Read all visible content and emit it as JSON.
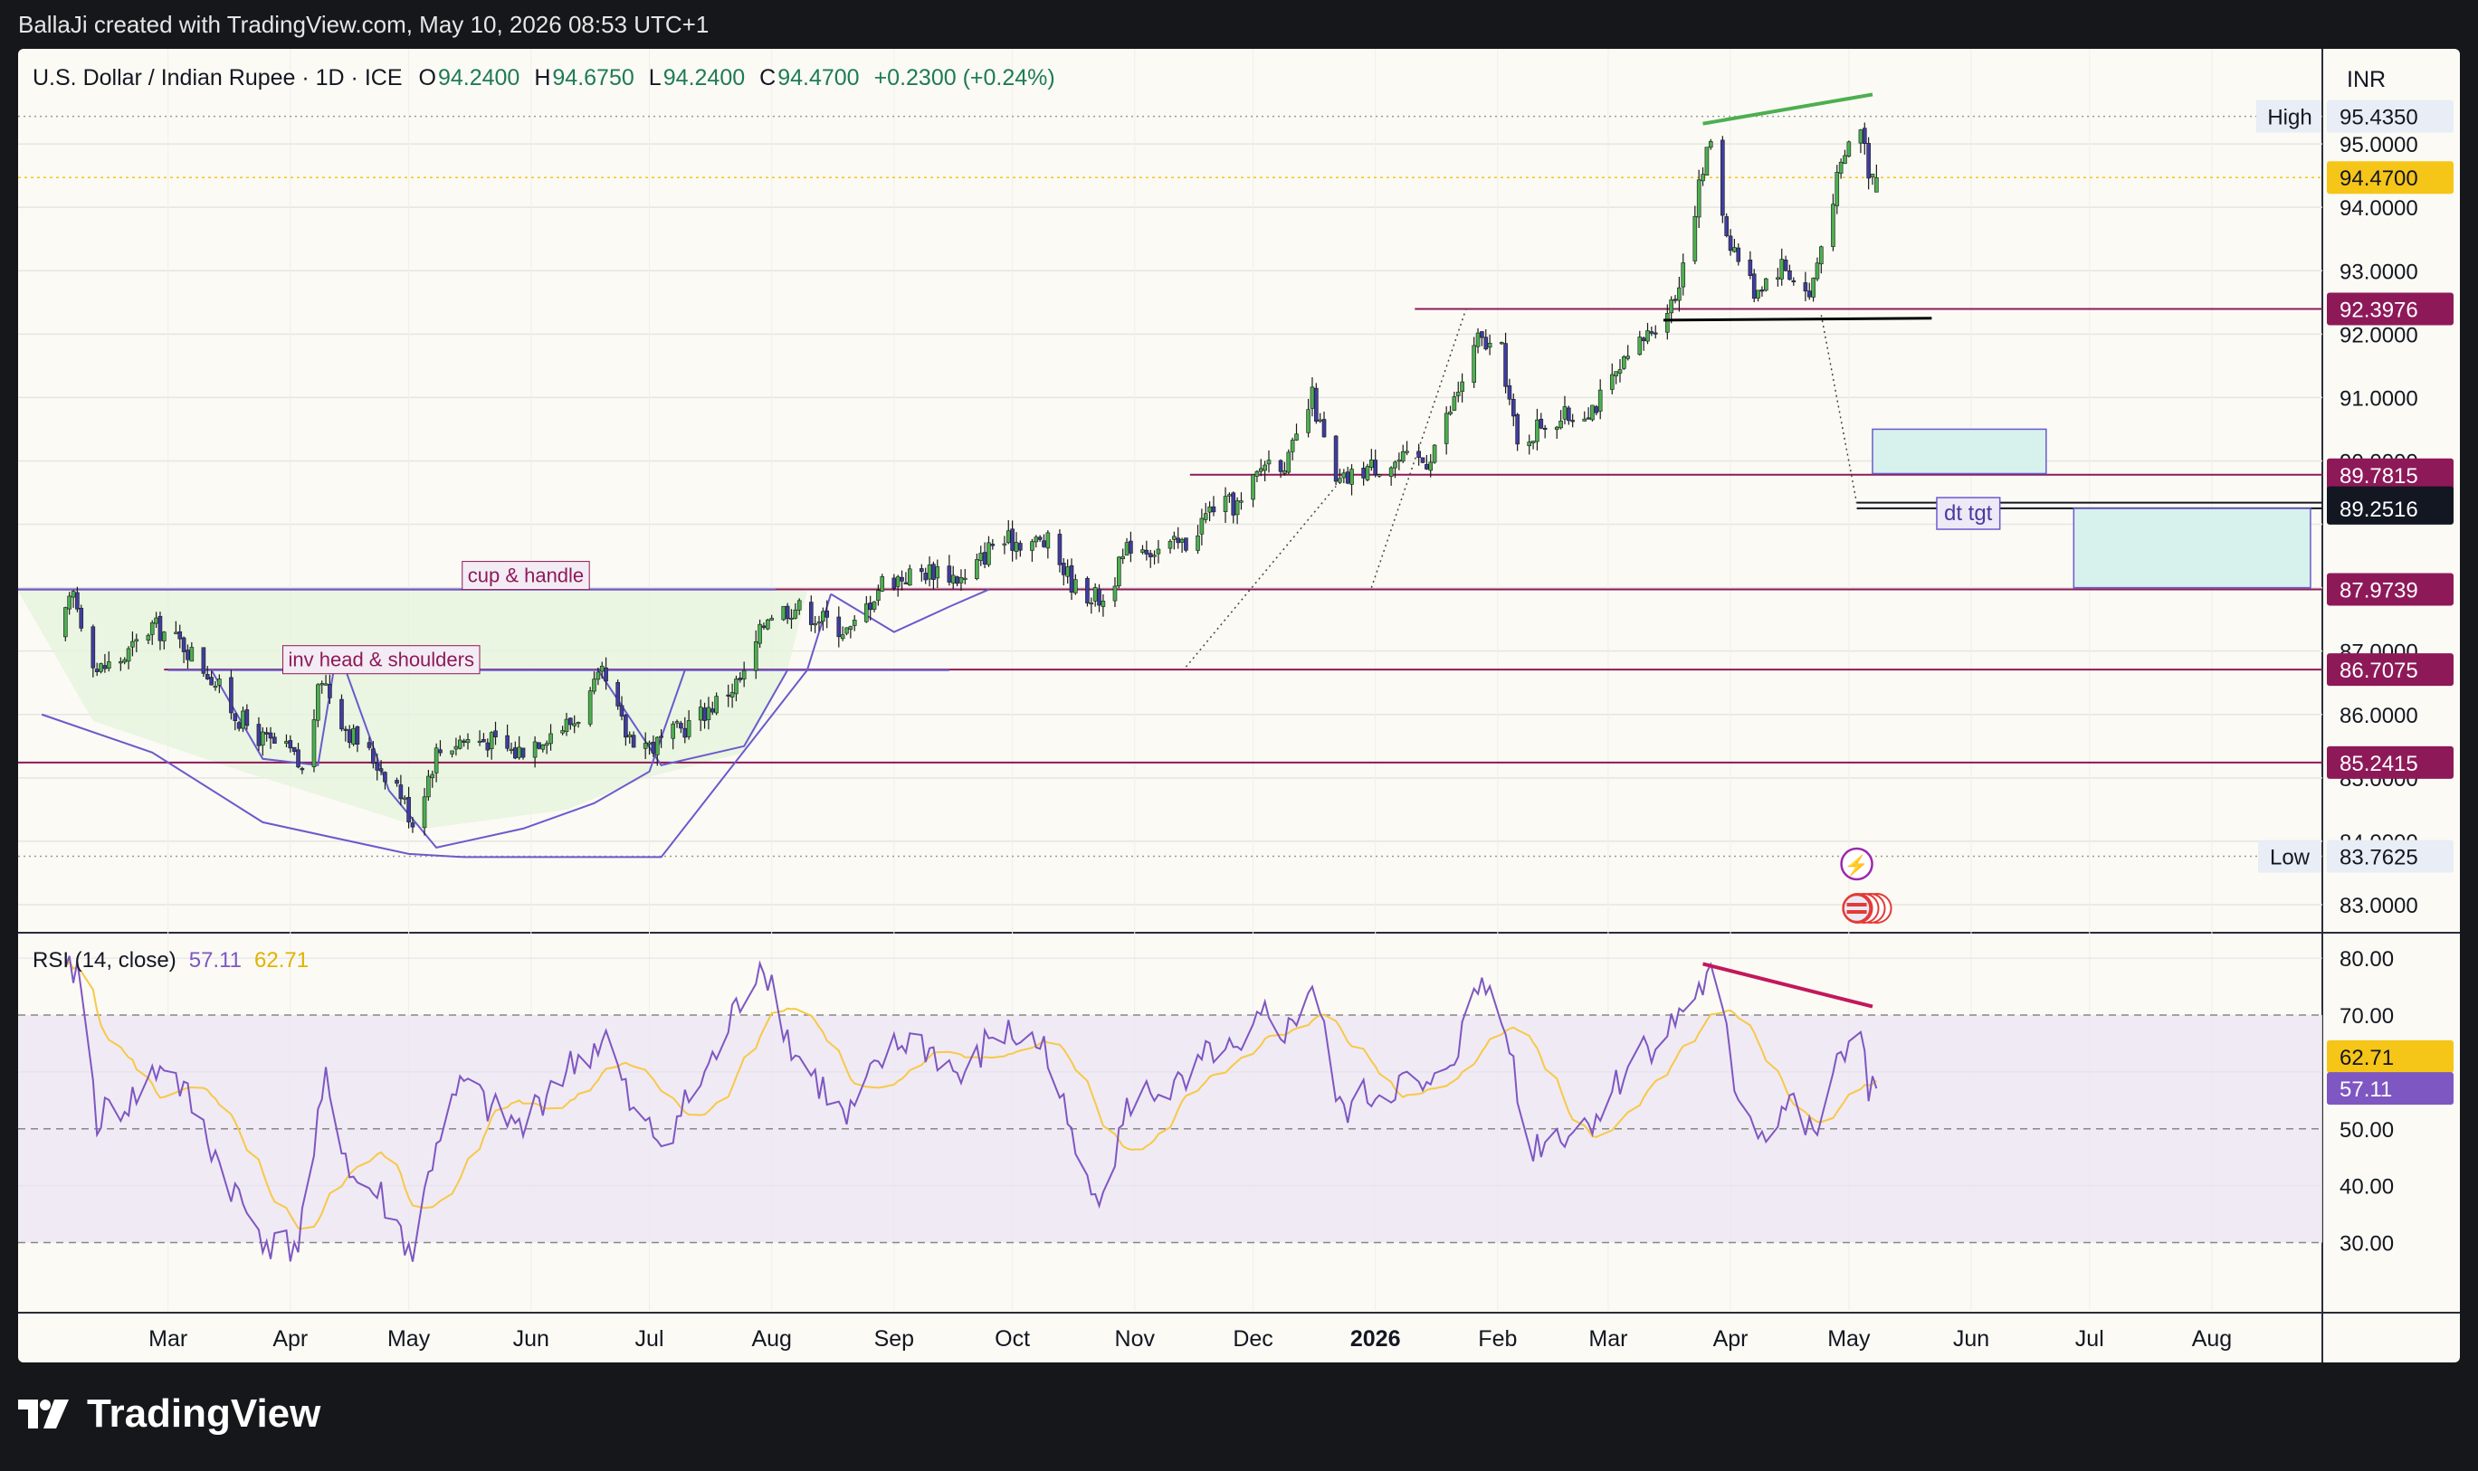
{
  "caption": "BallaJi created with TradingView.com, May 10, 2026 08:53 UTC+1",
  "brand": {
    "name": "TradingView",
    "logo_icon": "tradingview-logo-icon"
  },
  "header": {
    "symbol": "U.S. Dollar / Indian Rupee · 1D · ICE",
    "ohlc": [
      {
        "k": "O",
        "v": "94.2400"
      },
      {
        "k": "H",
        "v": "94.6750"
      },
      {
        "k": "L",
        "v": "94.2400"
      },
      {
        "k": "C",
        "v": "94.4700"
      }
    ],
    "change": "+0.2300 (+0.24%)",
    "currency": "INR"
  },
  "colors": {
    "up": "#4caf50",
    "down": "#3f3d9e",
    "level": "#8e1959",
    "rsi": "#7e57c2",
    "rsi_ma": "#f7c948",
    "green_trend": "#4caf50",
    "rsi_trend": "#c2185b",
    "pattern": "#6a5acd",
    "target_box": "#d7f2ec"
  },
  "chart_data": {
    "type": "candlestick",
    "ylim": [
      82.6,
      96.5
    ],
    "x_ticks": [
      "Mar",
      "Apr",
      "May",
      "Jun",
      "Jul",
      "Aug",
      "Sep",
      "Oct",
      "Nov",
      "Dec",
      "2026",
      "Feb",
      "Mar",
      "Apr",
      "May",
      "Jun",
      "Jul",
      "Aug"
    ],
    "y_ticks": [
      "95.0000",
      "94.0000",
      "93.0000",
      "92.0000",
      "91.0000",
      "90.0000",
      "87.0000",
      "86.0000",
      "85.0000",
      "84.0000",
      "83.0000"
    ],
    "series_anchors": [
      {
        "date": "2025-02-01",
        "close": 87.2
      },
      {
        "date": "2025-02-05",
        "close": 87.9
      },
      {
        "date": "2025-02-11",
        "close": 86.7
      },
      {
        "date": "2025-02-18",
        "close": 86.9
      },
      {
        "date": "2025-02-25",
        "close": 87.4
      },
      {
        "date": "2025-03-05",
        "close": 87.1
      },
      {
        "date": "2025-03-12",
        "close": 86.6
      },
      {
        "date": "2025-03-18",
        "close": 86.0
      },
      {
        "date": "2025-03-25",
        "close": 85.6
      },
      {
        "date": "2025-04-01",
        "close": 85.4
      },
      {
        "date": "2025-04-04",
        "close": 85.1
      },
      {
        "date": "2025-04-09",
        "close": 86.6
      },
      {
        "date": "2025-04-15",
        "close": 85.8
      },
      {
        "date": "2025-04-22",
        "close": 85.3
      },
      {
        "date": "2025-04-28",
        "close": 84.9
      },
      {
        "date": "2025-05-02",
        "close": 84.3
      },
      {
        "date": "2025-05-08",
        "close": 85.4
      },
      {
        "date": "2025-05-14",
        "close": 85.6
      },
      {
        "date": "2025-05-21",
        "close": 85.6
      },
      {
        "date": "2025-05-28",
        "close": 85.4
      },
      {
        "date": "2025-06-05",
        "close": 85.7
      },
      {
        "date": "2025-06-12",
        "close": 85.9
      },
      {
        "date": "2025-06-19",
        "close": 86.6
      },
      {
        "date": "2025-06-25",
        "close": 85.7
      },
      {
        "date": "2025-07-02",
        "close": 85.5
      },
      {
        "date": "2025-07-10",
        "close": 85.8
      },
      {
        "date": "2025-07-18",
        "close": 86.2
      },
      {
        "date": "2025-07-25",
        "close": 86.6
      },
      {
        "date": "2025-07-31",
        "close": 87.6
      },
      {
        "date": "2025-08-07",
        "close": 87.7
      },
      {
        "date": "2025-08-14",
        "close": 87.5
      },
      {
        "date": "2025-08-21",
        "close": 87.3
      },
      {
        "date": "2025-08-29",
        "close": 88.1
      },
      {
        "date": "2025-09-05",
        "close": 88.2
      },
      {
        "date": "2025-09-12",
        "close": 88.3
      },
      {
        "date": "2025-09-19",
        "close": 88.1
      },
      {
        "date": "2025-09-26",
        "close": 88.7
      },
      {
        "date": "2025-10-03",
        "close": 88.75
      },
      {
        "date": "2025-10-10",
        "close": 88.7
      },
      {
        "date": "2025-10-17",
        "close": 88.0
      },
      {
        "date": "2025-10-24",
        "close": 87.8
      },
      {
        "date": "2025-10-31",
        "close": 88.7
      },
      {
        "date": "2025-11-07",
        "close": 88.6
      },
      {
        "date": "2025-11-14",
        "close": 88.7
      },
      {
        "date": "2025-11-21",
        "close": 89.3
      },
      {
        "date": "2025-11-28",
        "close": 89.3
      },
      {
        "date": "2025-12-04",
        "close": 90.0
      },
      {
        "date": "2025-12-10",
        "close": 90.0
      },
      {
        "date": "2025-12-16",
        "close": 91.0
      },
      {
        "date": "2025-12-22",
        "close": 89.6
      },
      {
        "date": "2025-12-30",
        "close": 89.9
      },
      {
        "date": "2026-01-07",
        "close": 90.0
      },
      {
        "date": "2026-01-14",
        "close": 90.0
      },
      {
        "date": "2026-01-20",
        "close": 90.8
      },
      {
        "date": "2026-01-27",
        "close": 91.9
      },
      {
        "date": "2026-02-02",
        "close": 91.7
      },
      {
        "date": "2026-02-06",
        "close": 90.2
      },
      {
        "date": "2026-02-12",
        "close": 90.6
      },
      {
        "date": "2026-02-19",
        "close": 90.7
      },
      {
        "date": "2026-02-26",
        "close": 90.9
      },
      {
        "date": "2026-03-04",
        "close": 91.4
      },
      {
        "date": "2026-03-11",
        "close": 92.0
      },
      {
        "date": "2026-03-18",
        "close": 92.6
      },
      {
        "date": "2026-03-24",
        "close": 94.3
      },
      {
        "date": "2026-03-27",
        "close": 95.1
      },
      {
        "date": "2026-03-31",
        "close": 93.6
      },
      {
        "date": "2026-04-07",
        "close": 92.7
      },
      {
        "date": "2026-04-14",
        "close": 93.1
      },
      {
        "date": "2026-04-21",
        "close": 92.6
      },
      {
        "date": "2026-04-27",
        "close": 94.2
      },
      {
        "date": "2026-05-01",
        "close": 95.0
      },
      {
        "date": "2026-05-04",
        "close": 95.3
      },
      {
        "date": "2026-05-06",
        "close": 94.6
      },
      {
        "date": "2026-05-08",
        "close": 94.47
      }
    ],
    "levels": [
      {
        "label": "92.3976",
        "value": 92.3976,
        "style": "maroon"
      },
      {
        "label": "89.7815",
        "value": 89.7815,
        "style": "maroon"
      },
      {
        "label": "89.3414",
        "value": 89.3414,
        "style": "dark"
      },
      {
        "label": "89.2516",
        "value": 89.2516,
        "style": "dark"
      },
      {
        "label": "87.9739",
        "value": 87.9739,
        "style": "maroon"
      },
      {
        "label": "86.7075",
        "value": 86.7075,
        "style": "maroon"
      },
      {
        "label": "85.2415",
        "value": 85.2415,
        "style": "maroon"
      }
    ],
    "high": {
      "label": "High",
      "value": "95.4350"
    },
    "low": {
      "label": "Low",
      "value": "83.7625"
    },
    "last_price": "94.4700",
    "annotations": [
      "cup & handle",
      "inv head & shoulders",
      "dt tgt"
    ]
  },
  "rsi": {
    "label": "RSI (14, close)",
    "value": "57.11",
    "ma_value": "62.71",
    "ylim": [
      18,
      84
    ],
    "y_ticks": [
      "80.00",
      "70.00",
      "60.00",
      "50.00",
      "40.00",
      "30.00"
    ],
    "anchors": [
      {
        "date": "2025-02-01",
        "v": 74
      },
      {
        "date": "2025-02-06",
        "v": 79
      },
      {
        "date": "2025-02-11",
        "v": 52
      },
      {
        "date": "2025-02-20",
        "v": 55
      },
      {
        "date": "2025-02-28",
        "v": 62
      },
      {
        "date": "2025-03-07",
        "v": 54
      },
      {
        "date": "2025-03-14",
        "v": 44
      },
      {
        "date": "2025-03-21",
        "v": 35
      },
      {
        "date": "2025-03-28",
        "v": 29
      },
      {
        "date": "2025-04-03",
        "v": 30
      },
      {
        "date": "2025-04-10",
        "v": 58
      },
      {
        "date": "2025-04-17",
        "v": 41
      },
      {
        "date": "2025-04-24",
        "v": 38
      },
      {
        "date": "2025-05-02",
        "v": 28
      },
      {
        "date": "2025-05-08",
        "v": 48
      },
      {
        "date": "2025-05-15",
        "v": 58
      },
      {
        "date": "2025-05-22",
        "v": 53
      },
      {
        "date": "2025-05-30",
        "v": 50
      },
      {
        "date": "2025-06-06",
        "v": 58
      },
      {
        "date": "2025-06-13",
        "v": 62
      },
      {
        "date": "2025-06-20",
        "v": 66
      },
      {
        "date": "2025-06-27",
        "v": 52
      },
      {
        "date": "2025-07-04",
        "v": 48
      },
      {
        "date": "2025-07-11",
        "v": 55
      },
      {
        "date": "2025-07-18",
        "v": 63
      },
      {
        "date": "2025-07-25",
        "v": 74
      },
      {
        "date": "2025-07-30",
        "v": 80
      },
      {
        "date": "2025-08-06",
        "v": 64
      },
      {
        "date": "2025-08-13",
        "v": 58
      },
      {
        "date": "2025-08-20",
        "v": 51
      },
      {
        "date": "2025-08-29",
        "v": 62
      },
      {
        "date": "2025-09-05",
        "v": 66
      },
      {
        "date": "2025-09-12",
        "v": 63
      },
      {
        "date": "2025-09-19",
        "v": 58
      },
      {
        "date": "2025-09-26",
        "v": 67
      },
      {
        "date": "2025-10-03",
        "v": 66
      },
      {
        "date": "2025-10-10",
        "v": 64
      },
      {
        "date": "2025-10-17",
        "v": 45
      },
      {
        "date": "2025-10-24",
        "v": 39
      },
      {
        "date": "2025-10-31",
        "v": 55
      },
      {
        "date": "2025-11-07",
        "v": 57
      },
      {
        "date": "2025-11-14",
        "v": 57
      },
      {
        "date": "2025-11-21",
        "v": 64
      },
      {
        "date": "2025-11-28",
        "v": 62
      },
      {
        "date": "2025-12-04",
        "v": 70
      },
      {
        "date": "2025-12-10",
        "v": 67
      },
      {
        "date": "2025-12-16",
        "v": 76
      },
      {
        "date": "2025-12-23",
        "v": 53
      },
      {
        "date": "2025-12-31",
        "v": 56
      },
      {
        "date": "2026-01-08",
        "v": 58
      },
      {
        "date": "2026-01-15",
        "v": 56
      },
      {
        "date": "2026-01-22",
        "v": 65
      },
      {
        "date": "2026-01-28",
        "v": 76
      },
      {
        "date": "2026-02-03",
        "v": 70
      },
      {
        "date": "2026-02-08",
        "v": 46
      },
      {
        "date": "2026-02-15",
        "v": 49
      },
      {
        "date": "2026-02-22",
        "v": 50
      },
      {
        "date": "2026-03-01",
        "v": 55
      },
      {
        "date": "2026-03-08",
        "v": 64
      },
      {
        "date": "2026-03-15",
        "v": 66
      },
      {
        "date": "2026-03-22",
        "v": 73
      },
      {
        "date": "2026-03-28",
        "v": 77
      },
      {
        "date": "2026-04-02",
        "v": 58
      },
      {
        "date": "2026-04-09",
        "v": 49
      },
      {
        "date": "2026-04-16",
        "v": 55
      },
      {
        "date": "2026-04-22",
        "v": 48
      },
      {
        "date": "2026-04-29",
        "v": 62
      },
      {
        "date": "2026-05-04",
        "v": 70
      },
      {
        "date": "2026-05-06",
        "v": 55
      },
      {
        "date": "2026-05-08",
        "v": 57.11
      }
    ]
  }
}
